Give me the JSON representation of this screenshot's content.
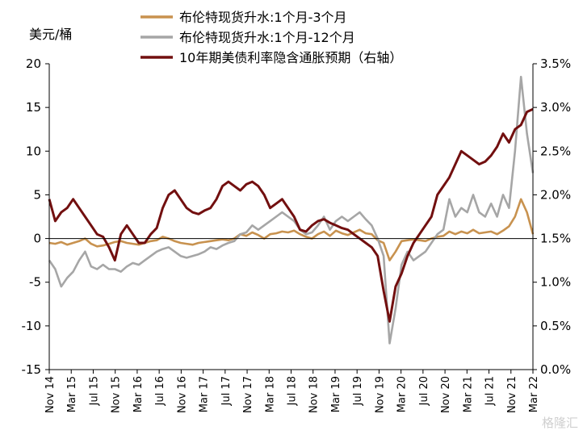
{
  "chart_data": {
    "type": "line",
    "left_unit_label": "美元/桶",
    "left_axis": {
      "ylim": [
        -15,
        20
      ],
      "ticks": [
        "-15",
        "-10",
        "-5",
        "0",
        "5",
        "10",
        "15",
        "20"
      ]
    },
    "right_axis": {
      "ylim": [
        0.0,
        3.5
      ],
      "ticks": [
        "0.0%",
        "0.5%",
        "1.0%",
        "1.5%",
        "2.0%",
        "2.5%",
        "3.0%",
        "3.5%"
      ]
    },
    "x_ticks": [
      "Nov 14",
      "Mar 15",
      "Jul 15",
      "Nov 15",
      "Mar 16",
      "Jul 16",
      "Nov 16",
      "Mar 17",
      "Jul 17",
      "Nov 17",
      "Mar 18",
      "Jul 18",
      "Nov 18",
      "Mar 19",
      "Jul 19",
      "Nov 19",
      "Mar 20",
      "Jul 20",
      "Nov 20",
      "Mar 21",
      "Jul 21",
      "Nov 21",
      "Mar 22"
    ],
    "legend_placement": "top-center",
    "series": [
      {
        "name": "布伦特现货升水:1个月-3个月",
        "axis": "left",
        "color": "#c8924f",
        "values": [
          -0.5,
          -0.6,
          -0.4,
          -0.7,
          -0.5,
          -0.3,
          0.0,
          -0.6,
          -0.9,
          -0.8,
          -0.6,
          -0.4,
          -0.3,
          -0.5,
          -0.6,
          -0.7,
          -0.5,
          -0.3,
          -0.2,
          0.2,
          0.0,
          -0.3,
          -0.5,
          -0.6,
          -0.7,
          -0.5,
          -0.4,
          -0.3,
          -0.2,
          -0.1,
          -0.2,
          0.0,
          0.5,
          0.3,
          0.7,
          0.4,
          0.0,
          0.5,
          0.6,
          0.8,
          0.7,
          0.9,
          0.5,
          0.2,
          0.0,
          0.5,
          0.8,
          0.3,
          0.9,
          0.6,
          0.4,
          0.7,
          1.0,
          0.6,
          0.5,
          -0.2,
          -0.5,
          -2.5,
          -1.5,
          -0.3,
          -0.2,
          -0.1,
          -0.2,
          -0.3,
          0.0,
          0.2,
          0.3,
          0.8,
          0.5,
          0.8,
          0.6,
          1.0,
          0.6,
          0.7,
          0.8,
          0.5,
          0.9,
          1.4,
          2.5,
          4.5,
          3.0,
          0.5
        ]
      },
      {
        "name": "布伦特现货升水:1个月-12个月",
        "axis": "left",
        "color": "#a6a6a6",
        "values": [
          -2.5,
          -3.5,
          -5.5,
          -4.5,
          -3.8,
          -2.5,
          -1.5,
          -3.2,
          -3.5,
          -3.0,
          -3.5,
          -3.5,
          -3.8,
          -3.2,
          -2.8,
          -3.0,
          -2.5,
          -2.0,
          -1.5,
          -1.2,
          -1.0,
          -1.5,
          -2.0,
          -2.2,
          -2.0,
          -1.8,
          -1.5,
          -1.0,
          -1.2,
          -0.8,
          -0.5,
          -0.3,
          0.5,
          0.7,
          1.5,
          1.0,
          1.5,
          2.0,
          2.5,
          3.0,
          2.5,
          2.0,
          1.0,
          0.5,
          0.7,
          1.5,
          2.5,
          1.0,
          2.0,
          2.5,
          2.0,
          2.5,
          3.0,
          2.2,
          1.5,
          0.0,
          -2.0,
          -12.0,
          -8.0,
          -3.0,
          -1.5,
          -2.5,
          -2.0,
          -1.5,
          -0.5,
          0.5,
          1.0,
          4.5,
          2.5,
          3.5,
          3.0,
          5.0,
          3.0,
          2.5,
          4.0,
          2.5,
          5.0,
          3.5,
          10.0,
          18.5,
          12.0,
          7.5
        ]
      },
      {
        "name": "10年期美债利率隐含通胀预期（右轴）",
        "axis": "right",
        "color": "#720f0f",
        "values": [
          1.95,
          1.7,
          1.8,
          1.85,
          1.95,
          1.85,
          1.75,
          1.65,
          1.55,
          1.52,
          1.4,
          1.25,
          1.55,
          1.65,
          1.55,
          1.45,
          1.45,
          1.55,
          1.62,
          1.85,
          2.0,
          2.05,
          1.95,
          1.85,
          1.8,
          1.78,
          1.82,
          1.85,
          1.95,
          2.1,
          2.15,
          2.1,
          2.05,
          2.12,
          2.15,
          2.1,
          2.0,
          1.85,
          1.9,
          1.95,
          1.85,
          1.75,
          1.6,
          1.58,
          1.65,
          1.7,
          1.72,
          1.68,
          1.65,
          1.62,
          1.6,
          1.55,
          1.5,
          1.45,
          1.4,
          1.3,
          0.9,
          0.55,
          0.95,
          1.1,
          1.3,
          1.45,
          1.55,
          1.65,
          1.75,
          2.0,
          2.1,
          2.2,
          2.35,
          2.5,
          2.45,
          2.4,
          2.35,
          2.38,
          2.45,
          2.55,
          2.7,
          2.6,
          2.75,
          2.8,
          2.95,
          2.98
        ]
      }
    ]
  },
  "watermark": {
    "text": "格隆汇"
  }
}
